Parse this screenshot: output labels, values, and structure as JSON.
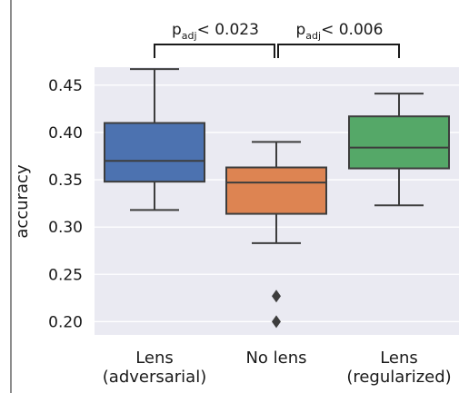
{
  "chart_data": {
    "type": "box",
    "title": "",
    "xlabel": "",
    "ylabel": "accuracy",
    "ylim": [
      0.186,
      0.469
    ],
    "yticks": [
      0.2,
      0.25,
      0.3,
      0.35,
      0.4,
      0.45
    ],
    "ytick_labels": [
      "0.20",
      "0.25",
      "0.30",
      "0.35",
      "0.40",
      "0.45"
    ],
    "grid": true,
    "background": "#eaeaf2",
    "categories": [
      {
        "label_line1": "Lens",
        "label_line2": "(adversarial)"
      },
      {
        "label_line1": "No lens",
        "label_line2": ""
      },
      {
        "label_line1": "Lens",
        "label_line2": "(regularized)"
      }
    ],
    "boxes": [
      {
        "whisker_low": 0.318,
        "q1": 0.348,
        "median": 0.37,
        "q3": 0.41,
        "whisker_high": 0.467,
        "outliers": [],
        "color": "#4c72b0"
      },
      {
        "whisker_low": 0.283,
        "q1": 0.314,
        "median": 0.347,
        "q3": 0.363,
        "whisker_high": 0.39,
        "outliers": [
          0.227,
          0.2
        ],
        "color": "#dd8452"
      },
      {
        "whisker_low": 0.323,
        "q1": 0.362,
        "median": 0.384,
        "q3": 0.417,
        "whisker_high": 0.441,
        "outliers": [],
        "color": "#55a868"
      }
    ],
    "annotations": [
      {
        "from": 0,
        "to": 1,
        "p_symbol": "p",
        "p_subscript": "adj",
        "text": "< 0.023"
      },
      {
        "from": 1,
        "to": 2,
        "p_symbol": "p",
        "p_subscript": "adj",
        "text": "< 0.006"
      }
    ]
  }
}
